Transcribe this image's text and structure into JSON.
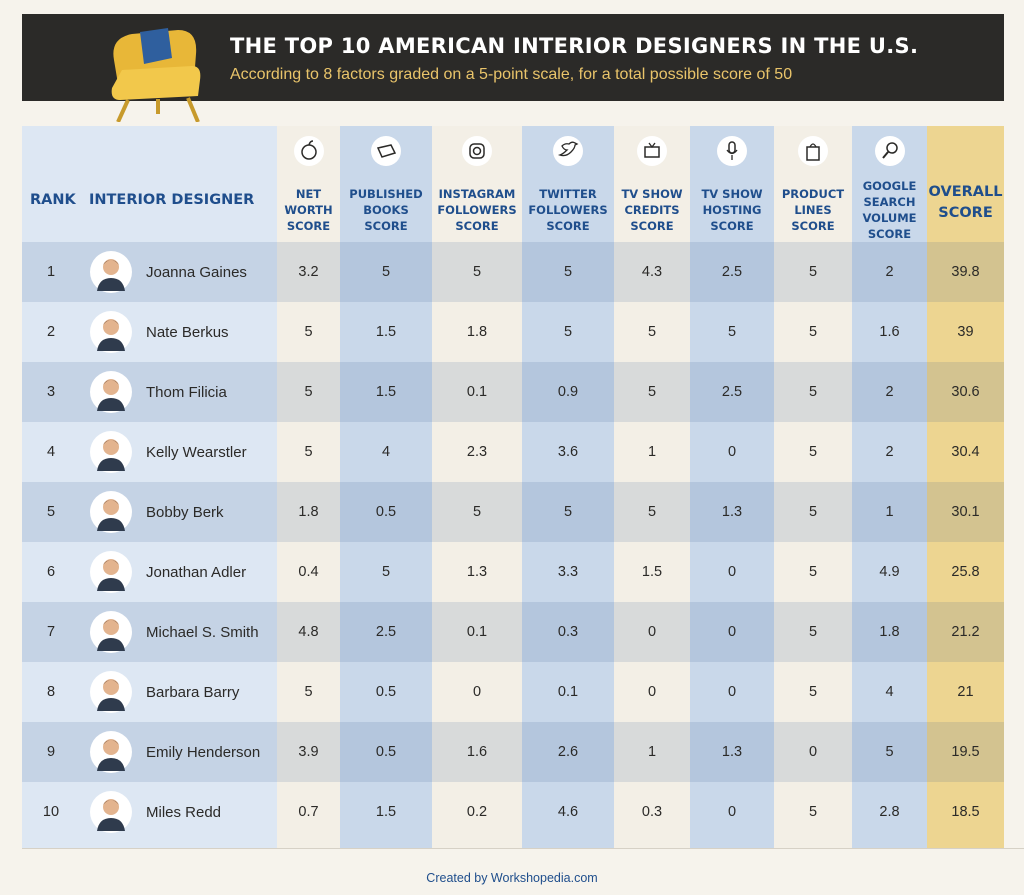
{
  "header": {
    "title": "THE TOP 10 AMERICAN INTERIOR DESIGNERS IN THE U.S.",
    "subtitle": "According to 8 factors graded on a 5-point scale, for a total possible score of 50"
  },
  "colors": {
    "header_bg": "#2b2a28",
    "accent_yellow": "#e9c46a",
    "navy": "#1f4e8c",
    "blue_band_dark": "#c9d8ea",
    "blue_band_light": "#dde7f3",
    "overall_band": "#edd591"
  },
  "icons": [
    "apple-money-icon",
    "book-icon",
    "instagram-icon",
    "twitter-bird-icon",
    "tv-icon",
    "microphone-icon",
    "shopping-bag-icon",
    "magnifier-icon"
  ],
  "chart_data": {
    "type": "table",
    "title": "THE TOP 10 AMERICAN INTERIOR DESIGNERS IN THE U.S.",
    "subtitle": "According to 8 factors graded on a 5-point scale, for a total possible score of 50",
    "columns": {
      "rank": "RANK",
      "designer": "INTERIOR DESIGNER",
      "factors": [
        [
          "NET",
          "WORTH",
          "SCORE"
        ],
        [
          "PUBLISHED",
          "BOOKS",
          "SCORE"
        ],
        [
          "INSTAGRAM",
          "FOLLOWERS",
          "SCORE"
        ],
        [
          "TWITTER",
          "FOLLOWERS",
          "SCORE"
        ],
        [
          "TV SHOW",
          "CREDITS",
          "SCORE"
        ],
        [
          "TV SHOW",
          "HOSTING",
          "SCORE"
        ],
        [
          "PRODUCT",
          "LINES",
          "SCORE"
        ],
        [
          "GOOGLE",
          "SEARCH",
          "VOLUME",
          "SCORE"
        ]
      ],
      "overall": [
        "OVERALL",
        "SCORE"
      ]
    },
    "rows": [
      {
        "rank": "1",
        "name": "Joanna Gaines",
        "scores": [
          "3.2",
          "5",
          "5",
          "5",
          "4.3",
          "2.5",
          "5",
          "2"
        ],
        "overall": "39.8"
      },
      {
        "rank": "2",
        "name": "Nate Berkus",
        "scores": [
          "5",
          "1.5",
          "1.8",
          "5",
          "5",
          "5",
          "5",
          "1.6"
        ],
        "overall": "39"
      },
      {
        "rank": "3",
        "name": "Thom Filicia",
        "scores": [
          "5",
          "1.5",
          "0.1",
          "0.9",
          "5",
          "2.5",
          "5",
          "2"
        ],
        "overall": "30.6"
      },
      {
        "rank": "4",
        "name": "Kelly Wearstler",
        "scores": [
          "5",
          "4",
          "2.3",
          "3.6",
          "1",
          "0",
          "5",
          "2"
        ],
        "overall": "30.4"
      },
      {
        "rank": "5",
        "name": "Bobby Berk",
        "scores": [
          "1.8",
          "0.5",
          "5",
          "5",
          "5",
          "1.3",
          "5",
          "1"
        ],
        "overall": "30.1"
      },
      {
        "rank": "6",
        "name": "Jonathan Adler",
        "scores": [
          "0.4",
          "5",
          "1.3",
          "3.3",
          "1.5",
          "0",
          "5",
          "4.9"
        ],
        "overall": "25.8"
      },
      {
        "rank": "7",
        "name": "Michael S. Smith",
        "scores": [
          "4.8",
          "2.5",
          "0.1",
          "0.3",
          "0",
          "0",
          "5",
          "1.8"
        ],
        "overall": "21.2"
      },
      {
        "rank": "8",
        "name": "Barbara Barry",
        "scores": [
          "5",
          "0.5",
          "0",
          "0.1",
          "0",
          "0",
          "5",
          "4"
        ],
        "overall": "21"
      },
      {
        "rank": "9",
        "name": "Emily Henderson",
        "scores": [
          "3.9",
          "0.5",
          "1.6",
          "2.6",
          "1",
          "1.3",
          "0",
          "5"
        ],
        "overall": "19.5"
      },
      {
        "rank": "10",
        "name": "Miles Redd",
        "scores": [
          "0.7",
          "1.5",
          "0.2",
          "4.6",
          "0.3",
          "0",
          "5",
          "2.8"
        ],
        "overall": "18.5"
      }
    ]
  },
  "footer": {
    "credit": "Created by Workshopedia.com"
  }
}
